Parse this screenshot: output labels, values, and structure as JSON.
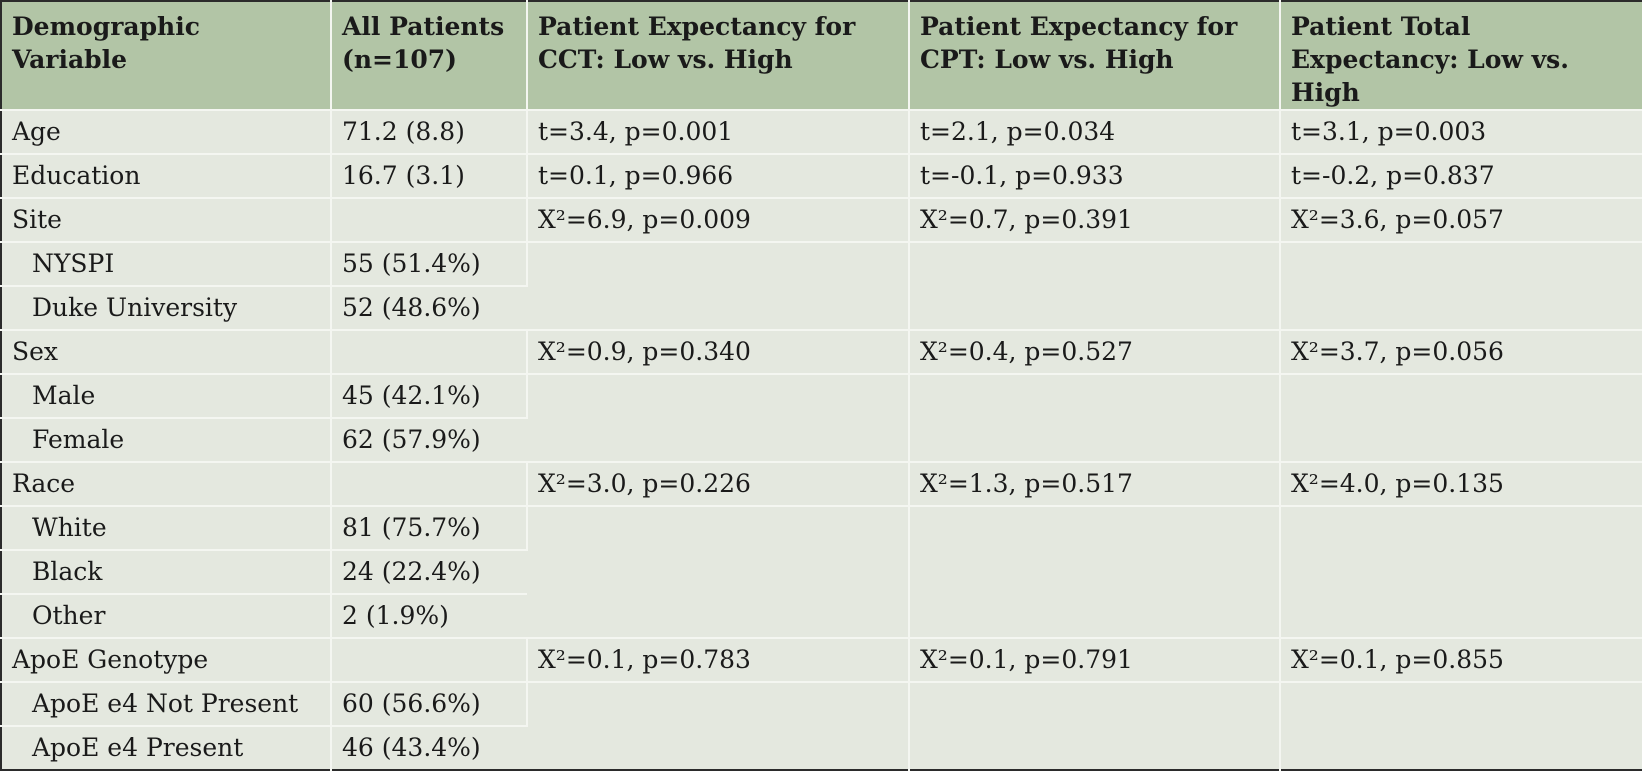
{
  "headers": [
    "Demographic Variable",
    "All Patients (n=107)",
    "Patient Expectancy for CCT: Low vs. High",
    "Patient Expectancy for CPT: Low vs. High",
    "Patient Total Expectancy: Low vs. High"
  ],
  "rows": {
    "age": {
      "label": "Age",
      "all": "71.2 (8.8)",
      "cct": "t=3.4, p=0.001",
      "cpt": "t=2.1, p=0.034",
      "total": "t=3.1, p=0.003"
    },
    "education": {
      "label": "Education",
      "all": "16.7 (3.1)",
      "cct": "t=0.1, p=0.966",
      "cpt": "t=-0.1, p=0.933",
      "total": "t=-0.2, p=0.837"
    },
    "site": {
      "label": "Site",
      "cct": "X²=6.9, p=0.009",
      "cpt": "X²=0.7, p=0.391",
      "total": "X²=3.6, p=0.057"
    },
    "nyspi": {
      "label": "NYSPI",
      "all": "55 (51.4%)"
    },
    "duke": {
      "label": "Duke University",
      "all": "52 (48.6%)"
    },
    "sex": {
      "label": "Sex",
      "cct": "X²=0.9, p=0.340",
      "cpt": "X²=0.4, p=0.527",
      "total": "X²=3.7, p=0.056"
    },
    "male": {
      "label": "Male",
      "all": "45 (42.1%)"
    },
    "female": {
      "label": "Female",
      "all": "62 (57.9%)"
    },
    "race": {
      "label": "Race",
      "cct": "X²=3.0, p=0.226",
      "cpt": "X²=1.3, p=0.517",
      "total": "X²=4.0, p=0.135"
    },
    "white": {
      "label": "White",
      "all": "81 (75.7%)"
    },
    "black": {
      "label": "Black",
      "all": "24 (22.4%)"
    },
    "other": {
      "label": "Other",
      "all": "2 (1.9%)"
    },
    "apoe": {
      "label": "ApoE Genotype",
      "cct": "X²=0.1, p=0.783",
      "cpt": "X²=0.1, p=0.791",
      "total": "X²=0.1, p=0.855"
    },
    "apoe_absent": {
      "label": "ApoE e4 Not Present",
      "all": "60 (56.6%)"
    },
    "apoe_present": {
      "label": "ApoE e4 Present",
      "all": "46 (43.4%)"
    }
  }
}
